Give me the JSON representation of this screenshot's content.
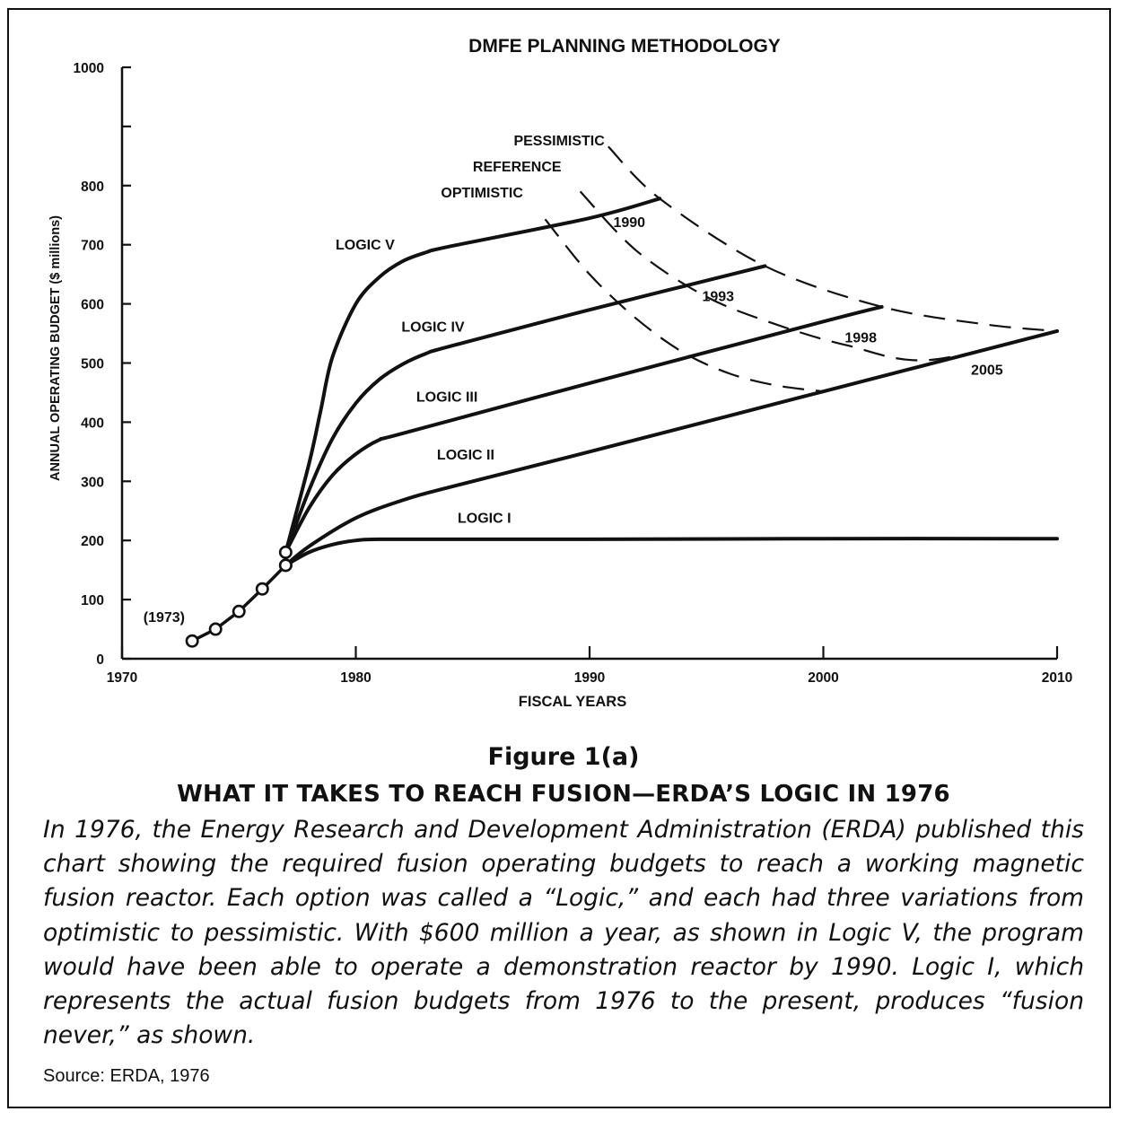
{
  "chart_data": {
    "type": "line",
    "title": "DMFE PLANNING METHODOLOGY",
    "xlabel": "FISCAL YEARS",
    "ylabel": "ANNUAL OPERATING BUDGET ($ millions)",
    "xlim": [
      1970,
      2010
    ],
    "ylim": [
      0,
      1000
    ],
    "xticks": [
      1970,
      1980,
      1990,
      2000,
      2010
    ],
    "yticks": [
      0,
      100,
      200,
      300,
      400,
      500,
      600,
      700,
      800,
      1000
    ],
    "series": [
      {
        "name": "(1973)",
        "style": "solid-markers",
        "x": [
          1973,
          1974,
          1975,
          1976,
          1977
        ],
        "y": [
          30,
          50,
          80,
          118,
          158
        ]
      },
      {
        "name": "LOGIC I",
        "style": "solid",
        "x": [
          1977,
          1978,
          1979,
          1980,
          1981,
          1985,
          1990,
          2000,
          2010
        ],
        "y": [
          158,
          180,
          193,
          200,
          202,
          202,
          202,
          203,
          203
        ]
      },
      {
        "name": "LOGIC II",
        "style": "solid",
        "x": [
          1977,
          1978,
          1980,
          1982,
          1984,
          1990,
          2000,
          2010
        ],
        "y": [
          158,
          190,
          238,
          268,
          290,
          350,
          452,
          554
        ]
      },
      {
        "name": "LOGIC III",
        "style": "solid",
        "x": [
          1977,
          1978,
          1979,
          1980,
          1981,
          1982,
          1990,
          2000,
          2002.5
        ],
        "y": [
          180,
          255,
          310,
          346,
          370,
          381,
          466,
          570,
          595
        ]
      },
      {
        "name": "LOGIC IV",
        "style": "solid",
        "x": [
          1977,
          1978,
          1979,
          1980,
          1981,
          1982,
          1983,
          1984,
          1990,
          1997.5
        ],
        "y": [
          180,
          285,
          372,
          432,
          472,
          498,
          516,
          528,
          590,
          664
        ]
      },
      {
        "name": "LOGIC V",
        "style": "solid",
        "x": [
          1977,
          1978,
          1978.5,
          1979,
          1980,
          1981,
          1982,
          1983,
          1984,
          1990,
          1993
        ],
        "y": [
          180,
          330,
          420,
          510,
          600,
          645,
          672,
          687,
          697,
          745,
          778
        ]
      },
      {
        "name": "OPTIMISTIC",
        "style": "dashed",
        "x": [
          1988.1,
          1990,
          1992,
          1994,
          1996,
          1998,
          2000
        ],
        "y": [
          743,
          650,
          575,
          518,
          482,
          462,
          452
        ]
      },
      {
        "name": "REFERENCE",
        "style": "dashed",
        "x": [
          1989.6,
          1992,
          1995,
          1998,
          2001,
          2004.5,
          2010
        ],
        "y": [
          790,
          690,
          612,
          565,
          530,
          505,
          554
        ]
      },
      {
        "name": "PESSIMISTIC",
        "style": "dashed",
        "x": [
          1990.8,
          1993,
          1997.5,
          2002.5,
          2007,
          2010
        ],
        "y": [
          866,
          778,
          664,
          595,
          565,
          554
        ]
      }
    ],
    "annotations": [
      {
        "text": "1990",
        "x": 1991.7,
        "y": 730
      },
      {
        "text": "1993",
        "x": 1995.5,
        "y": 605
      },
      {
        "text": "1998",
        "x": 2001.6,
        "y": 535
      },
      {
        "text": "2005",
        "x": 2007.0,
        "y": 480
      },
      {
        "text": "(1973)",
        "x": 1971.8,
        "y": 62
      },
      {
        "text": "LOGIC V",
        "x": 1980.4,
        "y": 692
      },
      {
        "text": "LOGIC IV",
        "x": 1983.3,
        "y": 553
      },
      {
        "text": "LOGIC III",
        "x": 1983.9,
        "y": 435
      },
      {
        "text": "LOGIC II",
        "x": 1984.7,
        "y": 337
      },
      {
        "text": "LOGIC I",
        "x": 1985.5,
        "y": 230
      },
      {
        "text": "OPTIMISTIC",
        "x": 1985.4,
        "y": 780
      },
      {
        "text": "REFERENCE",
        "x": 1986.9,
        "y": 824
      },
      {
        "text": "PESSIMISTIC",
        "x": 1988.7,
        "y": 868
      }
    ],
    "grid": false,
    "legend": "none"
  },
  "caption": {
    "figure_number": "Figure 1(a)",
    "title": "WHAT IT TAKES TO REACH FUSION—ERDA’S LOGIC IN 1976",
    "body": "In 1976, the Energy Research and Development Administration (ERDA) published this chart showing the required fusion operating budgets to reach a working magnetic fusion reactor. Each option was called a “Logic,” and each had three variations from optimistic to pessimistic. With $600 million a year, as shown in Logic V, the program would have been able to operate a demonstration reactor by 1990. Logic I, which represents the actual fusion budgets from 1976 to the present, produces “fusion never,” as shown.",
    "source": "Source: ERDA, 1976"
  },
  "colors": {
    "ink": "#111111",
    "background": "#ffffff"
  }
}
